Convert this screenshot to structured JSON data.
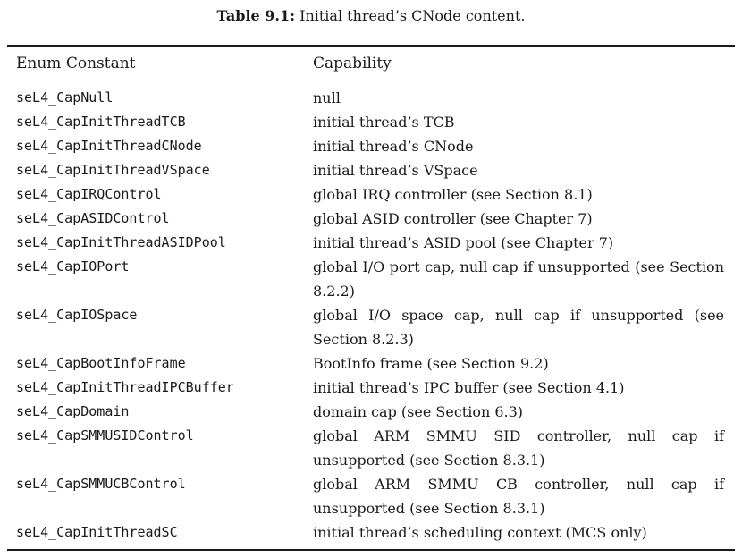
{
  "caption": {
    "label": "Table 9.1:",
    "text": "Initial thread’s CNode content."
  },
  "table": {
    "headers": [
      "Enum Constant",
      "Capability"
    ],
    "rows": [
      {
        "constant": "seL4_CapNull",
        "capability": "null"
      },
      {
        "constant": "seL4_CapInitThreadTCB",
        "capability": "initial thread’s TCB"
      },
      {
        "constant": "seL4_CapInitThreadCNode",
        "capability": "initial thread’s CNode"
      },
      {
        "constant": "seL4_CapInitThreadVSpace",
        "capability": "initial thread’s VSpace"
      },
      {
        "constant": "seL4_CapIRQControl",
        "capability": "global IRQ controller (see Section 8.1)"
      },
      {
        "constant": "seL4_CapASIDControl",
        "capability": "global ASID controller (see Chapter 7)"
      },
      {
        "constant": "seL4_CapInitThreadASIDPool",
        "capability": "initial thread’s ASID pool (see Chapter 7)"
      },
      {
        "constant": "seL4_CapIOPort",
        "capability": "global I/O port cap, null cap if unsupported (see Section 8.2.2)"
      },
      {
        "constant": "seL4_CapIOSpace",
        "capability": "global I/O space cap, null cap if unsupported (see Section 8.2.3)"
      },
      {
        "constant": "seL4_CapBootInfoFrame",
        "capability": "BootInfo frame (see Section 9.2)"
      },
      {
        "constant": "seL4_CapInitThreadIPCBuffer",
        "capability": "initial thread’s IPC buffer (see Section 4.1)"
      },
      {
        "constant": "seL4_CapDomain",
        "capability": "domain cap (see Section 6.3)"
      },
      {
        "constant": "seL4_CapSMMUSIDControl",
        "capability": "global ARM SMMU SID controller, null cap if unsupported (see Section 8.3.1)"
      },
      {
        "constant": "seL4_CapSMMUCBControl",
        "capability": "global ARM SMMU CB controller, null cap if unsupported (see Section 8.3.1)"
      },
      {
        "constant": "seL4_CapInitThreadSC",
        "capability": "initial thread’s scheduling context (MCS only)"
      }
    ]
  }
}
